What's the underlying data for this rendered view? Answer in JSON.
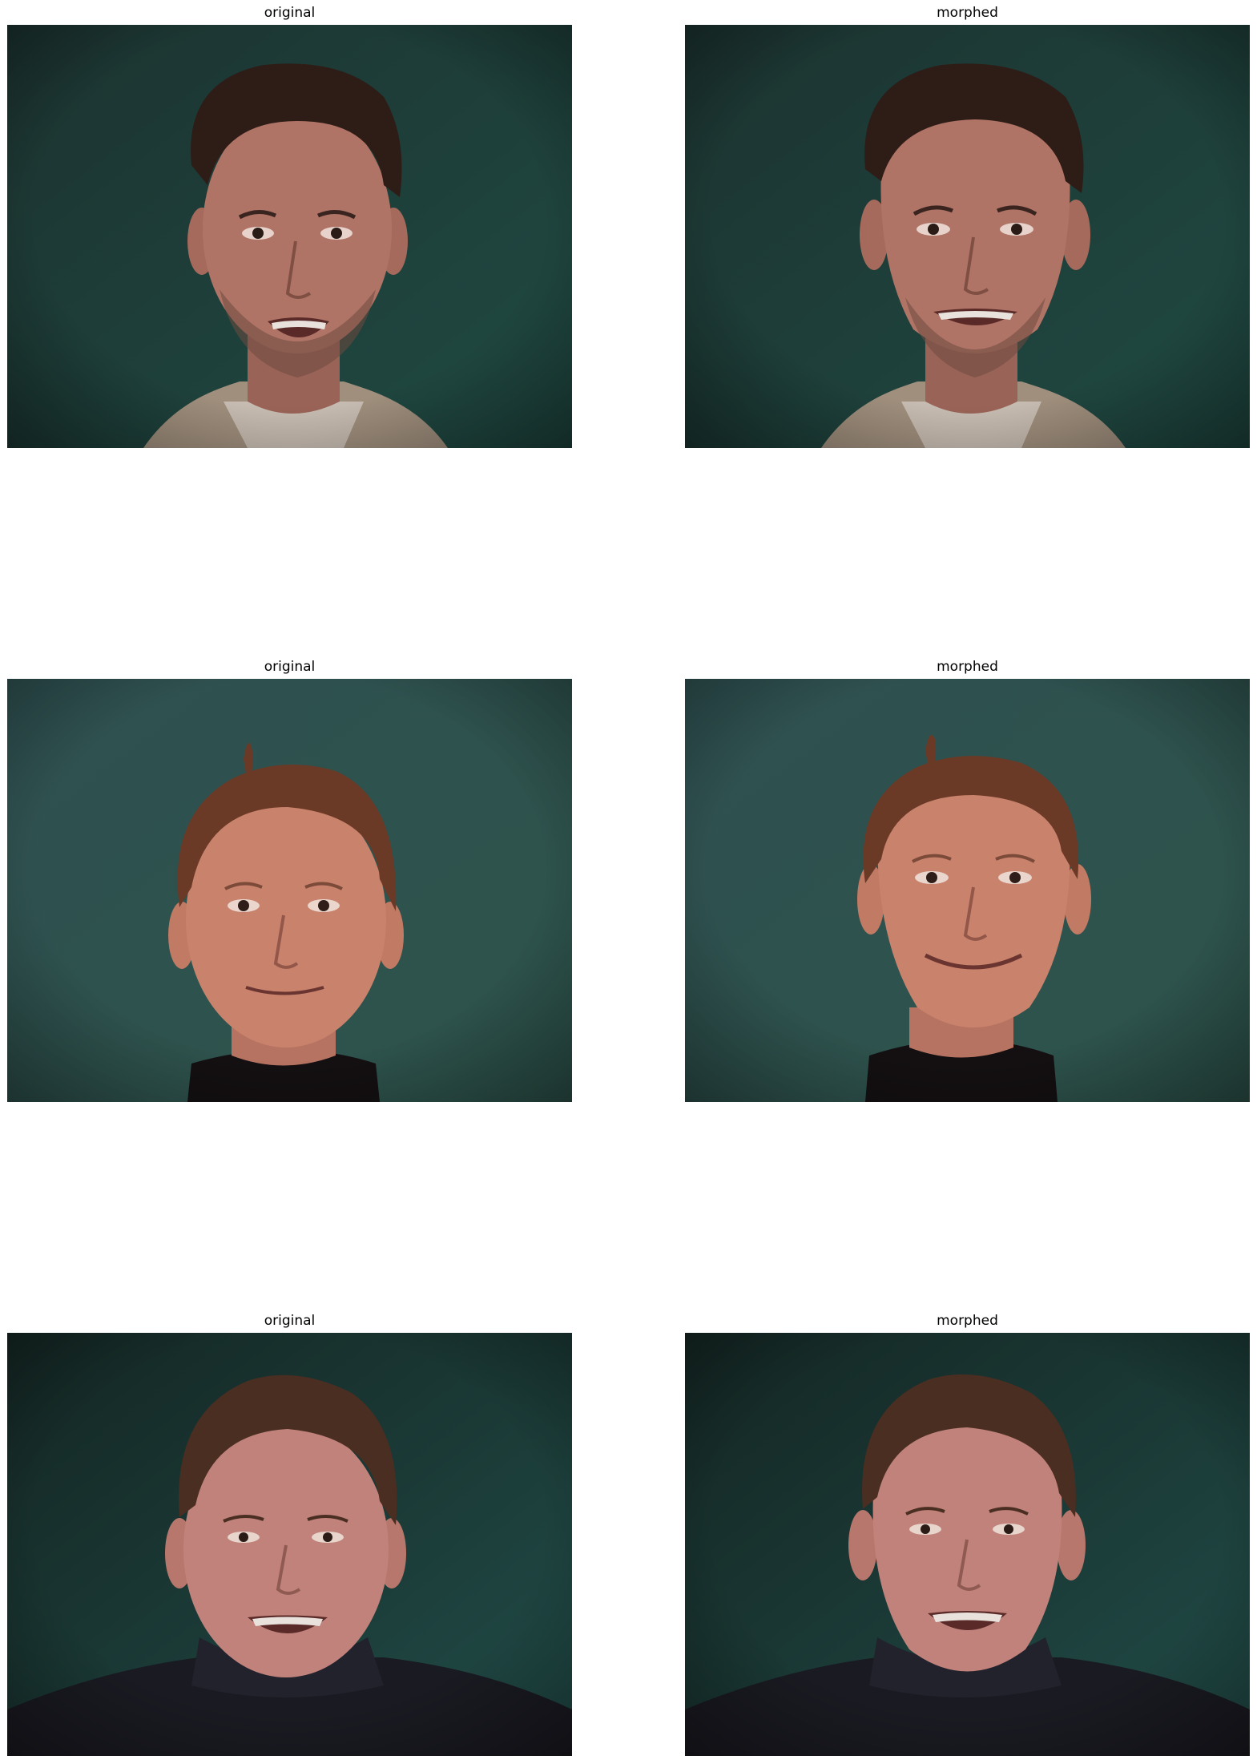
{
  "figure": {
    "panels": [
      {
        "title": "original",
        "subject": "man with short dark hair and goatee, smiling with open mouth, beige knit collar",
        "palette": {
          "bg_top": "#1c3330",
          "bg_bottom": "#204a43",
          "skin": "#b07466",
          "hair": "#2e1c17",
          "clothing": "#a08f7d"
        }
      },
      {
        "title": "morphed",
        "subject": "same man, warped face with wider smile, beige knit collar",
        "palette": {
          "bg_top": "#1c3330",
          "bg_bottom": "#204a43",
          "skin": "#b07466",
          "hair": "#2e1c17",
          "clothing": "#a08f7d"
        }
      },
      {
        "title": "original",
        "subject": "man with auburn hair and a cowlick, slight closed smile, black turtleneck",
        "palette": {
          "bg_top": "#2f5151",
          "bg_bottom": "#2d524a",
          "skin": "#c9826c",
          "hair": "#6b3a27",
          "clothing": "#141012"
        }
      },
      {
        "title": "morphed",
        "subject": "same man, warped face with wider closed smile, black turtleneck",
        "palette": {
          "bg_top": "#2f5151",
          "bg_bottom": "#2d524a",
          "skin": "#c9826c",
          "hair": "#6b3a27",
          "clothing": "#141012"
        }
      },
      {
        "title": "original",
        "subject": "man with short brown hair, broad toothy smile, dark knit turtleneck sweater",
        "palette": {
          "bg_top": "#142623",
          "bg_bottom": "#214c48",
          "skin": "#c0827a",
          "hair": "#4a2e22",
          "clothing": "#1a1a22"
        }
      },
      {
        "title": "morphed",
        "subject": "same man, slightly warped face with toothy smile, dark knit turtleneck sweater",
        "palette": {
          "bg_top": "#142623",
          "bg_bottom": "#214c48",
          "skin": "#c0827a",
          "hair": "#4a2e22",
          "clothing": "#1a1a22"
        }
      }
    ]
  }
}
